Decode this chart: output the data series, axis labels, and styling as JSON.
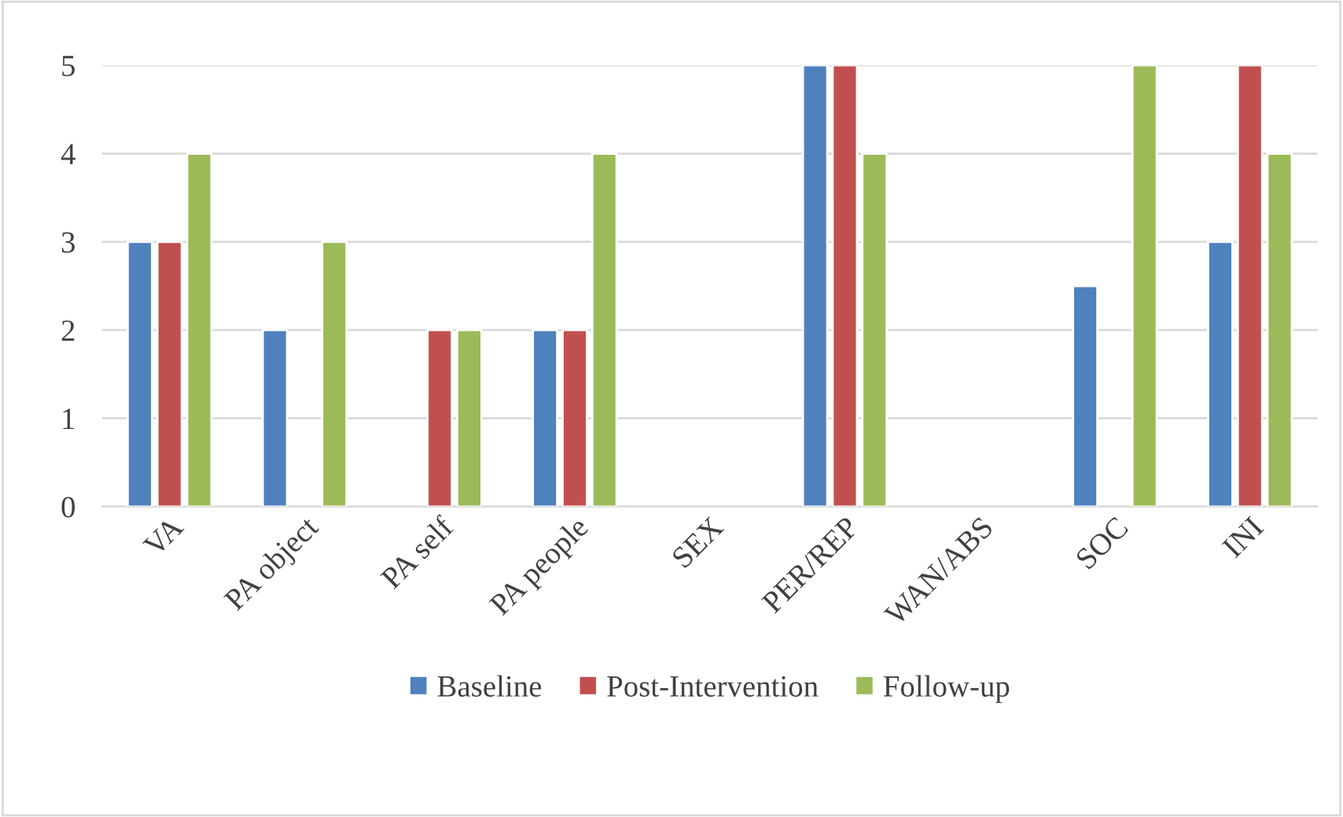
{
  "chart_data": {
    "type": "bar",
    "categories": [
      "VA",
      "PA object",
      "PA self",
      "PA people",
      "SEX",
      "PER/REP",
      "WAN/ABS",
      "SOC",
      "INI"
    ],
    "series": [
      {
        "name": "Baseline",
        "color": "#4f81bd",
        "values": [
          3,
          2,
          null,
          2,
          null,
          5,
          null,
          2.5,
          3
        ]
      },
      {
        "name": "Post-Intervention",
        "color": "#c0504d",
        "values": [
          3,
          null,
          2,
          2,
          null,
          5,
          null,
          null,
          5
        ]
      },
      {
        "name": "Follow-up",
        "color": "#9bbb59",
        "values": [
          4,
          3,
          2,
          4,
          null,
          4,
          null,
          5,
          4
        ]
      }
    ],
    "ylim": [
      0,
      5
    ],
    "yticks": [
      0,
      1,
      2,
      3,
      4,
      5
    ],
    "grid": "y",
    "legend": "bottom"
  }
}
